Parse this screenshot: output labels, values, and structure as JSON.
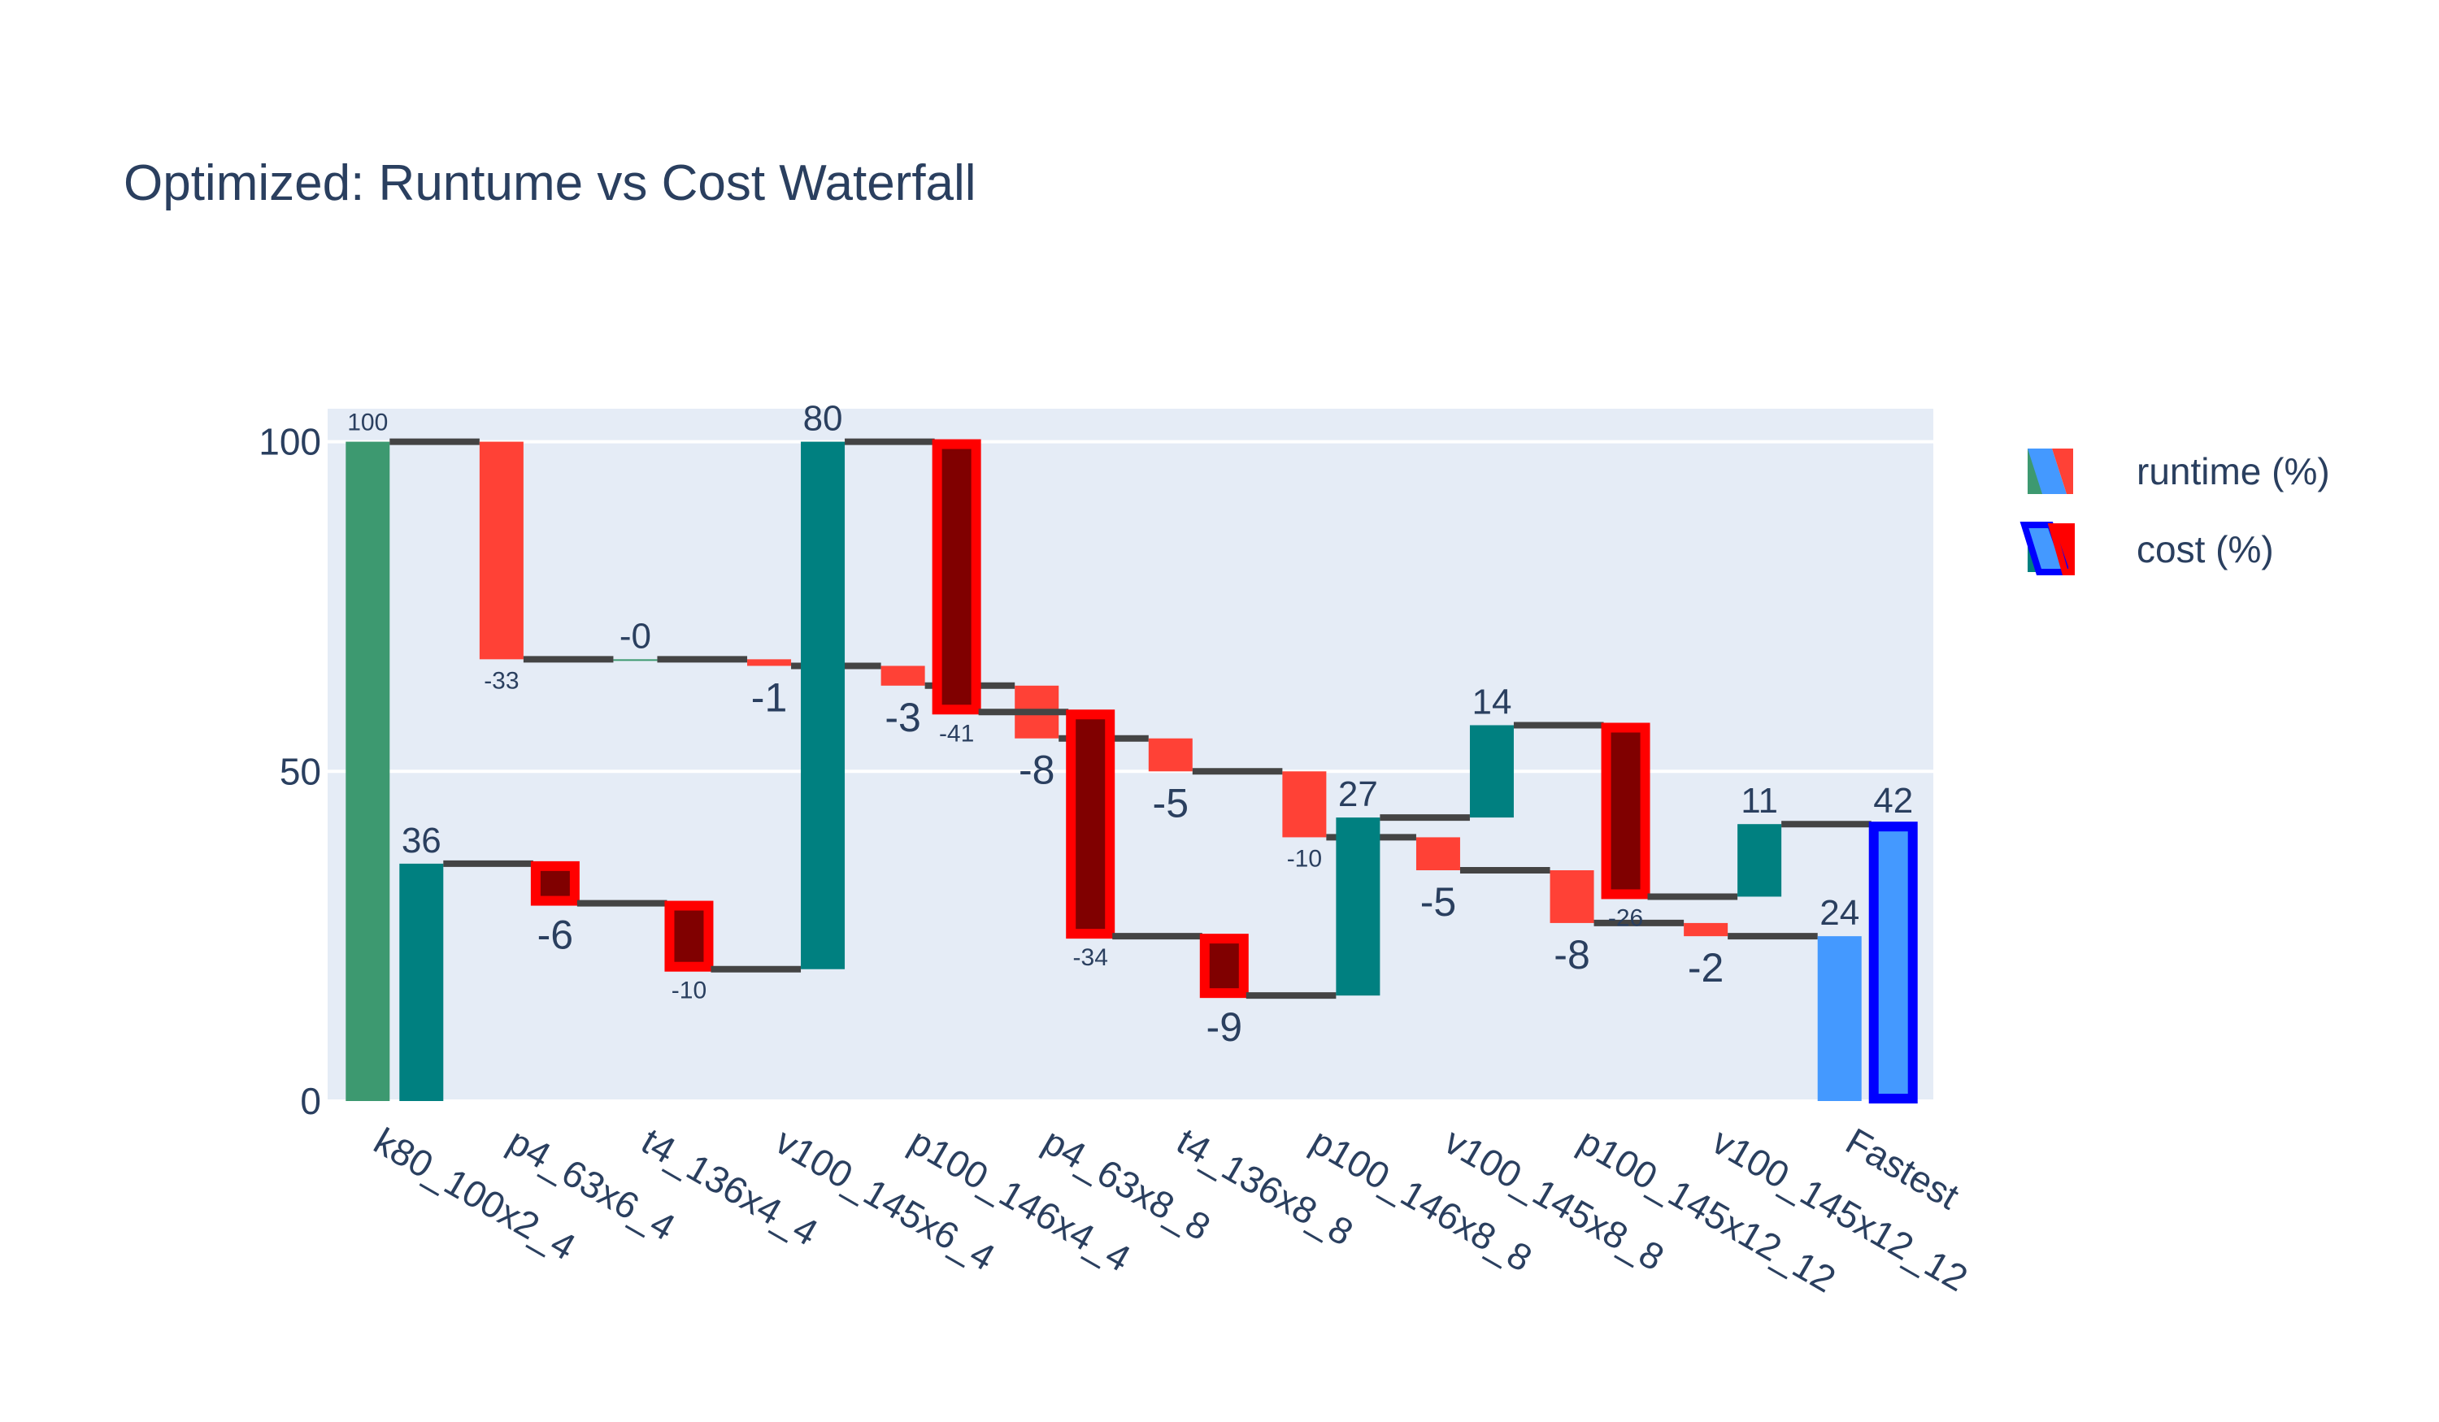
{
  "chart_data": {
    "type": "waterfall",
    "title": "Optimized: Runtume vs Cost Waterfall",
    "xlabel": "",
    "ylabel": "",
    "ylim": [
      0,
      105
    ],
    "yticks": [
      0,
      50,
      100
    ],
    "grid": true,
    "legend_position": "right",
    "categories": [
      "k80_100x2_4",
      "p4_63x6_4",
      "t4_136x4_4",
      "v100_145x6_4",
      "p100_146x4_4",
      "p4_63x8_8",
      "t4_136x8_8",
      "p100_146x8_8",
      "v100_145x8_8",
      "p100_145x12_12",
      "v100_145x12_12",
      "Fastest"
    ],
    "series": [
      {
        "name": "runtime (%)",
        "measures": [
          "absolute",
          "relative",
          "relative",
          "relative",
          "relative",
          "relative",
          "relative",
          "relative",
          "relative",
          "relative",
          "relative",
          "total"
        ],
        "values": [
          100,
          -33,
          0,
          -1,
          -3,
          -8,
          -5,
          -10,
          -5,
          -8,
          -2,
          24
        ],
        "text": [
          "100",
          "-33",
          "-0",
          "-1",
          "-3",
          "-8",
          "-5",
          "-10",
          "-5",
          "-8",
          "-2",
          "24"
        ],
        "colors": {
          "increasing": "#3d9970",
          "decreasing": "#ff4136",
          "totals": "#4499ff"
        },
        "outline": false
      },
      {
        "name": "cost (%)",
        "measures": [
          "absolute",
          "relative",
          "relative",
          "relative",
          "relative",
          "relative",
          "relative",
          "relative",
          "relative",
          "relative",
          "relative",
          "total"
        ],
        "values": [
          36,
          -6,
          -10,
          80,
          -41,
          -34,
          -9,
          27,
          14,
          -26,
          11,
          42
        ],
        "text": [
          "36",
          "-6",
          "-10",
          "80",
          "-41",
          "-34",
          "-9",
          "27",
          "14",
          "-26",
          "11",
          "42"
        ],
        "colors": {
          "increasing": "#008080",
          "decreasing": "#800000",
          "totals": "#4499ff"
        },
        "outline_colors": {
          "decreasing": "#ff0000",
          "totals": "#0000ff"
        },
        "outline": true
      }
    ],
    "connector_color": "#444444"
  }
}
